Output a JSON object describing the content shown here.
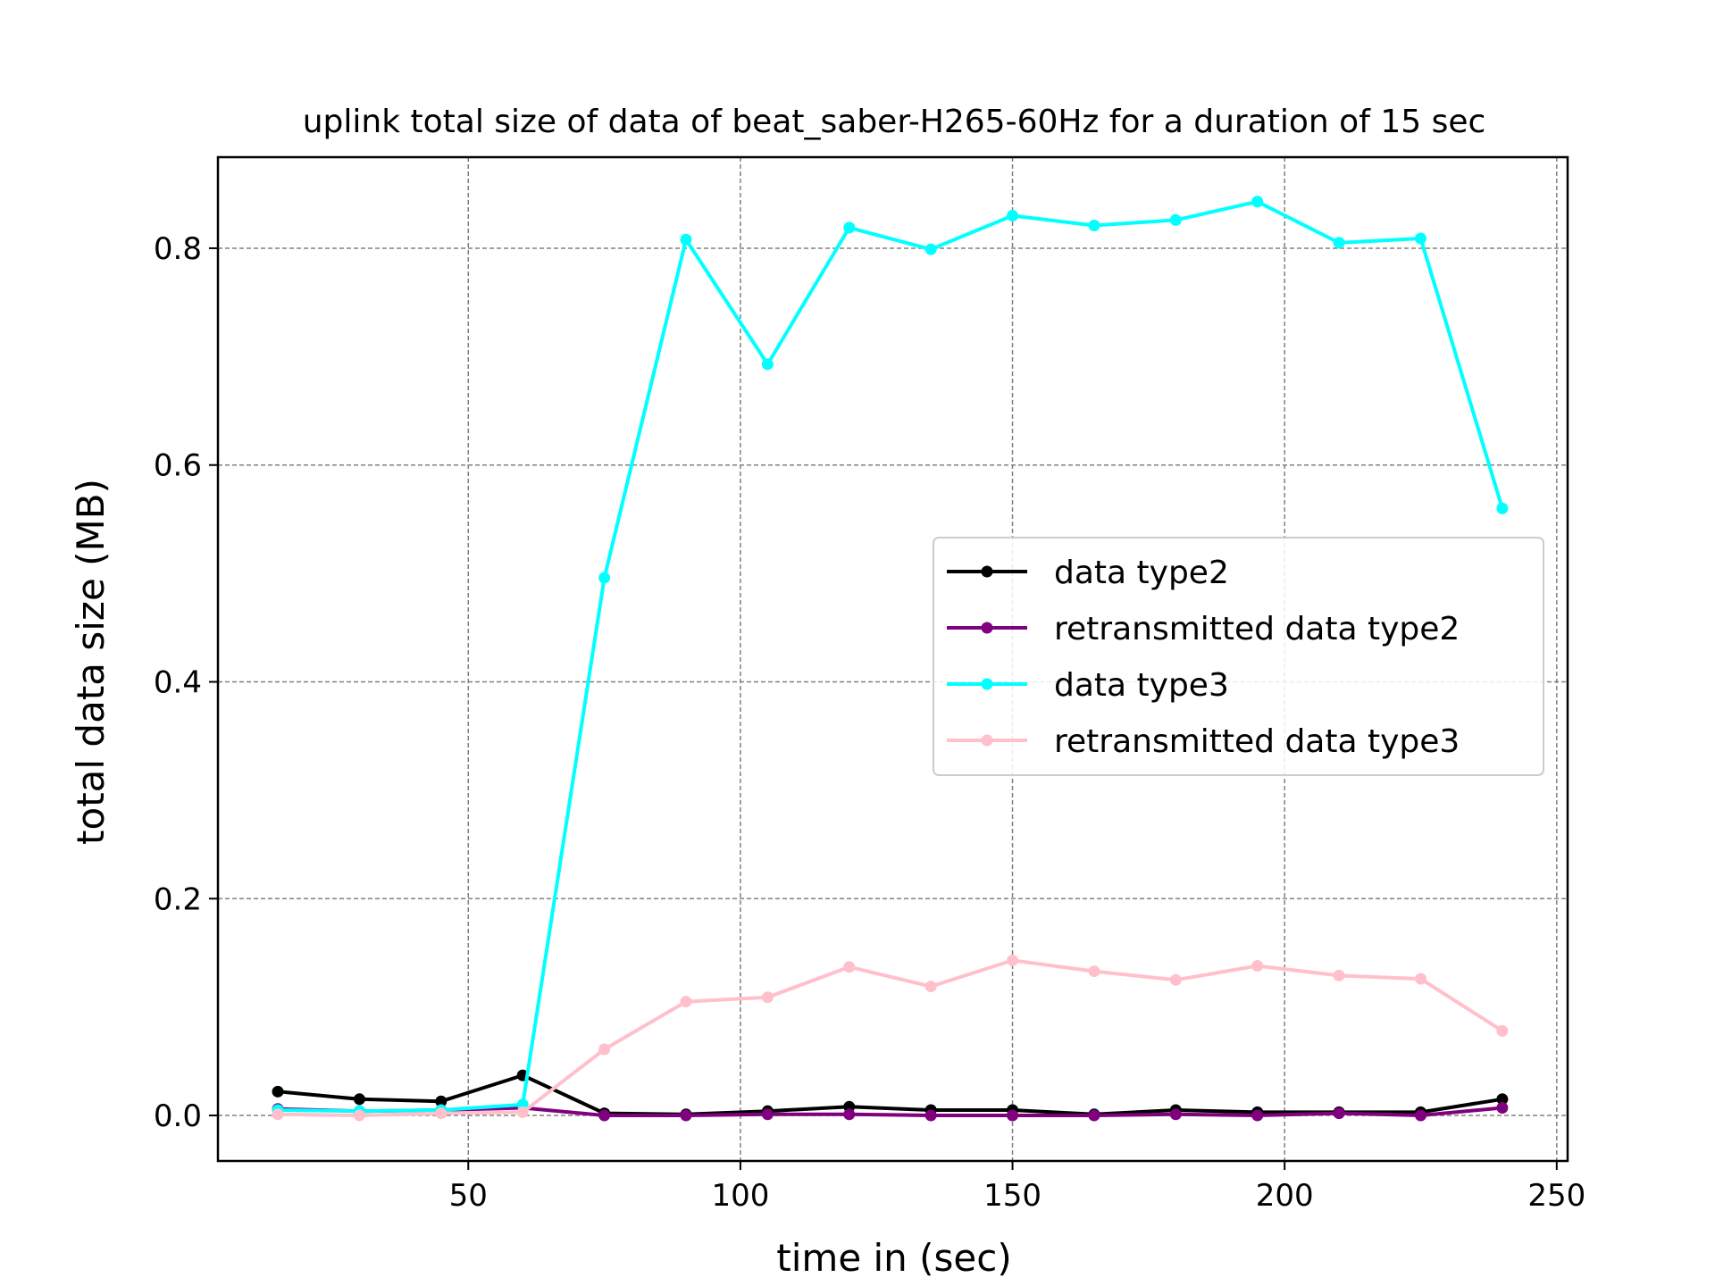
{
  "chart_data": {
    "type": "line",
    "title": "uplink total size of data of beat_saber-H265-60Hz for a duration of 15 sec",
    "xlabel": "time in (sec)",
    "ylabel": "total data size (MB)",
    "xlim": [
      4,
      252
    ],
    "ylim": [
      -0.042,
      0.884
    ],
    "xticks": [
      50,
      100,
      150,
      200,
      250
    ],
    "xtick_labels": [
      "50",
      "100",
      "150",
      "200",
      "250"
    ],
    "yticks": [
      0.0,
      0.2,
      0.4,
      0.6,
      0.8
    ],
    "ytick_labels": [
      "0.0",
      "0.2",
      "0.4",
      "0.6",
      "0.8"
    ],
    "grid": true,
    "legend_position": "center-right",
    "x": [
      15,
      30,
      45,
      60,
      75,
      90,
      105,
      120,
      135,
      150,
      165,
      180,
      195,
      210,
      225,
      240
    ],
    "series": [
      {
        "name": "data type2",
        "color": "#000000",
        "values": [
          0.022,
          0.015,
          0.013,
          0.037,
          0.002,
          0.001,
          0.004,
          0.008,
          0.005,
          0.005,
          0.001,
          0.005,
          0.003,
          0.003,
          0.003,
          0.015
        ]
      },
      {
        "name": "retransmitted data type2",
        "color": "#800080",
        "values": [
          0.006,
          0.004,
          0.005,
          0.007,
          0.0,
          0.0,
          0.001,
          0.001,
          0.0,
          0.0,
          0.0,
          0.001,
          0.0,
          0.002,
          0.0,
          0.007
        ]
      },
      {
        "name": "data type3",
        "color": "#00ffff",
        "values": [
          0.005,
          0.004,
          0.005,
          0.01,
          0.496,
          0.808,
          0.693,
          0.819,
          0.799,
          0.83,
          0.821,
          0.826,
          0.843,
          0.805,
          0.809,
          0.56
        ]
      },
      {
        "name": "retransmitted data type3",
        "color": "#ffc0cb",
        "values": [
          0.001,
          0.0,
          0.002,
          0.003,
          0.061,
          0.105,
          0.109,
          0.137,
          0.119,
          0.143,
          0.133,
          0.125,
          0.138,
          0.129,
          0.126,
          0.078
        ]
      }
    ]
  }
}
